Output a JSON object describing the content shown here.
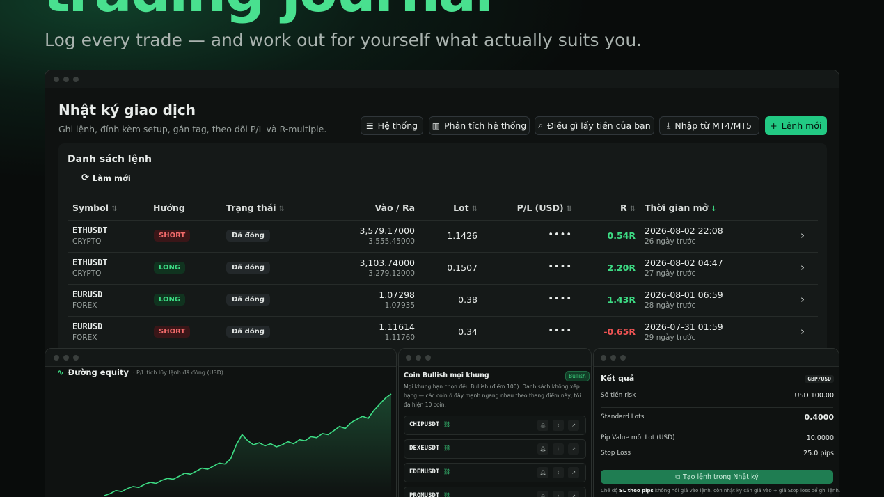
{
  "hero": {
    "title": "trading journal",
    "subtitle": "Log every trade — and work out for yourself what actually suits you."
  },
  "journal": {
    "title": "Nhật ký giao dịch",
    "subtitle": "Ghi lệnh, đính kèm setup, gắn tag, theo dõi P/L và R-multiple.",
    "buttons": [
      "Hệ thống",
      "Phân tích hệ thống",
      "Điều gì lấy tiền của bạn",
      "Nhập từ MT4/MT5",
      "Lệnh mới"
    ],
    "list_title": "Danh sách lệnh",
    "refresh": "Làm mới",
    "table": {
      "columns": [
        "Symbol",
        "Hướng",
        "Trạng thái",
        "Vào / Ra",
        "Lot",
        "P/L (USD)",
        "R",
        "Thời gian mở"
      ],
      "rows": [
        {
          "symbol": "ETHUSDT",
          "market": "CRYPTO",
          "side": "SHORT",
          "status": "Đã đóng",
          "entry": "3,579.17000",
          "exit": "3,555.45000",
          "lot": "1.1426",
          "pl": "••••",
          "r": "0.54R",
          "opened": "2026-08-02 22:08",
          "ago": "26 ngày trước"
        },
        {
          "symbol": "ETHUSDT",
          "market": "CRYPTO",
          "side": "LONG",
          "status": "Đã đóng",
          "entry": "3,103.74000",
          "exit": "3,279.12000",
          "lot": "0.1507",
          "pl": "••••",
          "r": "2.20R",
          "opened": "2026-08-02 04:47",
          "ago": "27 ngày trước"
        },
        {
          "symbol": "EURUSD",
          "market": "FOREX",
          "side": "LONG",
          "status": "Đã đóng",
          "entry": "1.07298",
          "exit": "1.07935",
          "lot": "0.38",
          "pl": "••••",
          "r": "1.43R",
          "opened": "2026-08-01 06:59",
          "ago": "28 ngày trước"
        },
        {
          "symbol": "EURUSD",
          "market": "FOREX",
          "side": "SHORT",
          "status": "Đã đóng",
          "entry": "1.11614",
          "exit": "1.11760",
          "lot": "0.34",
          "pl": "••••",
          "r": "-0.65R",
          "opened": "2026-07-31 01:59",
          "ago": "29 ngày trước"
        }
      ]
    }
  },
  "equity": {
    "title": "Đường equity",
    "subtitle": "· P/L tích lũy lệnh đã đóng (USD)",
    "color": "#3ddc84",
    "values": [
      0,
      2,
      5,
      4,
      7,
      9,
      8,
      11,
      13,
      12,
      15,
      17,
      16,
      19,
      22,
      21,
      24,
      27,
      26,
      29,
      32,
      31,
      36,
      50,
      60,
      54,
      50,
      52,
      49,
      51,
      48,
      50,
      53,
      51,
      55,
      54,
      58,
      57,
      61,
      60,
      64,
      68,
      66,
      72,
      75,
      78,
      76,
      84,
      90,
      96,
      100
    ]
  },
  "bullish": {
    "title": "Coin Bullish mọi khung",
    "badge": "Bullish",
    "description": "Mọi khung bạn chọn đều Bullish (điểm 100). Danh sách không xếp hạng — các coin ở đây mạnh ngang nhau theo thang điểm này, tối đa hiện 10 coin.",
    "coins": [
      "CHIPUSDT",
      "DEXEUSDT",
      "EDENUSDT",
      "PROMUSDT"
    ]
  },
  "calculator": {
    "title": "Kết quả",
    "pair": "GBP/USD",
    "rows": [
      {
        "label": "Số tiền risk",
        "value": "USD 100.00"
      },
      {
        "label": "Standard Lots",
        "value": "0.4000"
      },
      {
        "label": "Pip Value mỗi Lot (USD)",
        "value": "10.0000"
      },
      {
        "label": "Stop Loss",
        "value": "25.0 pips"
      }
    ],
    "button": "Tạo lệnh trong Nhật ký",
    "note_start": "Chế độ",
    "note_bold": "SL theo pips",
    "note_end": "không hỏi giá vào lệnh, còn nhật ký cần giá vào + giá Stop loss để ghi lệnh."
  }
}
